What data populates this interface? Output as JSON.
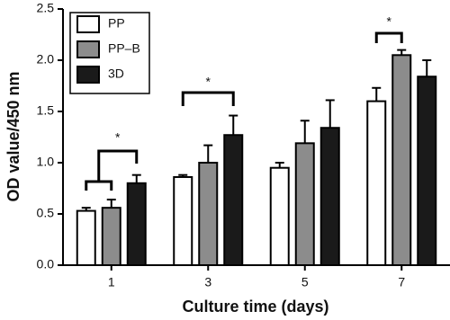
{
  "chart_data": {
    "type": "bar",
    "x_label": "Culture time (days)",
    "y_label": "OD value/450 nm",
    "categories": [
      "1",
      "3",
      "5",
      "7"
    ],
    "series": [
      {
        "name": "PP",
        "color": "#ffffff",
        "values": [
          0.53,
          0.86,
          0.95,
          1.6
        ],
        "errors": [
          0.03,
          0.02,
          0.05,
          0.13
        ]
      },
      {
        "name": "PP–B",
        "color": "#8c8c8c",
        "values": [
          0.56,
          1.0,
          1.19,
          2.05
        ],
        "errors": [
          0.08,
          0.17,
          0.22,
          0.05
        ]
      },
      {
        "name": "3D",
        "color": "#1a1a1a",
        "values": [
          0.8,
          1.27,
          1.34,
          1.84
        ],
        "errors": [
          0.08,
          0.19,
          0.27,
          0.16
        ]
      }
    ],
    "ylim": [
      0,
      2.5
    ],
    "yticks": [
      {
        "value": 0,
        "label": "0.0"
      },
      0.5,
      {
        "value": 1,
        "label": "1.0"
      },
      1.5,
      {
        "value": 2,
        "label": "2.0"
      },
      2.5
    ],
    "legend": "top-left",
    "annotations": [
      {
        "text": "*"
      },
      {
        "text": "*"
      },
      {
        "text": "*"
      }
    ]
  }
}
